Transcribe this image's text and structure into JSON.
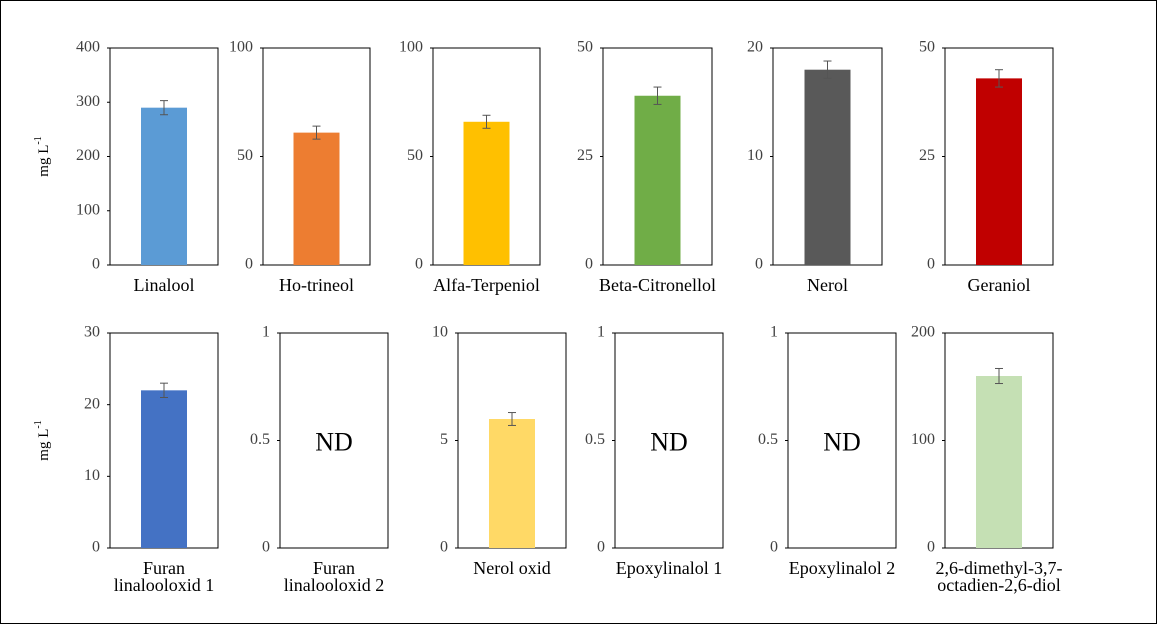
{
  "chart_data": [
    {
      "type": "bar",
      "ylabel": "mg L",
      "ylabel_sup": "-1",
      "categories": [
        "Linalool"
      ],
      "values": [
        290
      ],
      "errors": [
        13
      ],
      "color": "#5b9bd5",
      "ylim": [
        0,
        400
      ],
      "yticks": [
        0,
        100,
        200,
        300,
        400
      ]
    },
    {
      "type": "bar",
      "categories": [
        "Ho-trineol"
      ],
      "values": [
        61
      ],
      "errors": [
        3
      ],
      "color": "#ed7d31",
      "ylim": [
        0,
        100
      ],
      "yticks": [
        0,
        50,
        100
      ]
    },
    {
      "type": "bar",
      "categories": [
        "Alfa-Terpeniol"
      ],
      "values": [
        66
      ],
      "errors": [
        3
      ],
      "color": "#ffc000",
      "ylim": [
        0,
        100
      ],
      "yticks": [
        0,
        50,
        100
      ]
    },
    {
      "type": "bar",
      "categories": [
        "Beta-Citronellol"
      ],
      "values": [
        39
      ],
      "errors": [
        2
      ],
      "color": "#70ad47",
      "ylim": [
        0,
        50
      ],
      "yticks": [
        0,
        25,
        50
      ]
    },
    {
      "type": "bar",
      "categories": [
        "Nerol"
      ],
      "values": [
        18
      ],
      "errors": [
        0.8
      ],
      "color": "#595959",
      "ylim": [
        0,
        20
      ],
      "yticks": [
        0,
        10,
        20
      ]
    },
    {
      "type": "bar",
      "categories": [
        "Geraniol"
      ],
      "values": [
        43
      ],
      "errors": [
        2
      ],
      "color": "#c00000",
      "ylim": [
        0,
        50
      ],
      "yticks": [
        0,
        25,
        50
      ]
    },
    {
      "type": "bar",
      "ylabel": "mg L",
      "ylabel_sup": "-1",
      "categories": [
        "Furan linalooloxid 1"
      ],
      "values": [
        22
      ],
      "errors": [
        1
      ],
      "color": "#4472c4",
      "ylim": [
        0,
        30
      ],
      "yticks": [
        0,
        10,
        20,
        30
      ]
    },
    {
      "type": "bar",
      "annotation": "ND",
      "categories": [
        "Furan linalooloxid 2"
      ],
      "values": [
        null
      ],
      "ylim": [
        0,
        1
      ],
      "yticks": [
        0,
        0.5,
        1
      ]
    },
    {
      "type": "bar",
      "categories": [
        "Nerol oxid"
      ],
      "values": [
        6
      ],
      "errors": [
        0.3
      ],
      "color": "#ffd966",
      "ylim": [
        0,
        10
      ],
      "yticks": [
        0,
        5,
        10
      ]
    },
    {
      "type": "bar",
      "annotation": "ND",
      "categories": [
        "Epoxylinalol 1"
      ],
      "values": [
        null
      ],
      "ylim": [
        0,
        1
      ],
      "yticks": [
        0,
        0.5,
        1
      ]
    },
    {
      "type": "bar",
      "annotation": "ND",
      "categories": [
        "Epoxylinalol 2"
      ],
      "values": [
        null
      ],
      "ylim": [
        0,
        1
      ],
      "yticks": [
        0,
        0.5,
        1
      ]
    },
    {
      "type": "bar",
      "categories": [
        "2,6-dimethyl-3,7-octadien-2,6-diol"
      ],
      "values": [
        160
      ],
      "errors": [
        7
      ],
      "color": "#c5e0b4",
      "ylim": [
        0,
        200
      ],
      "yticks": [
        0,
        100,
        200
      ]
    }
  ]
}
